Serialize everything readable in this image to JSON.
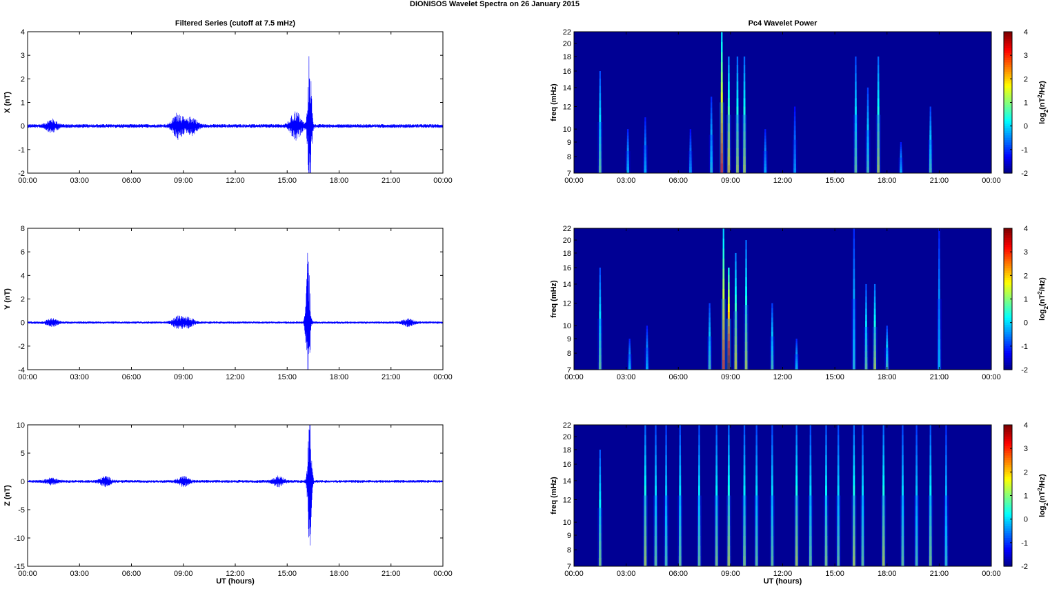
{
  "figure_title": "DIONISOS Wavelet Spectra on 26 January   2015",
  "chart_data": [
    {
      "type": "line",
      "title": "Filtered Series (cutoff at 7.5 mHz)",
      "xlabel": "",
      "ylabel": "X (nT)",
      "xlim": [
        0,
        24
      ],
      "ylim": [
        -2,
        4
      ],
      "yticks": [
        "4",
        "3",
        "2",
        "1",
        "0",
        "-1",
        "-2"
      ],
      "xticks": [
        "00:00",
        "03:00",
        "06:00",
        "09:00",
        "12:00",
        "15:00",
        "18:00",
        "21:00",
        "00:00"
      ],
      "color": "#0000ff",
      "activity": [
        {
          "t": 1.4,
          "amp": 0.25
        },
        {
          "t": 8.7,
          "amp": 0.55
        },
        {
          "t": 9.5,
          "amp": 0.35
        },
        {
          "t": 15.5,
          "amp": 0.6
        },
        {
          "t": 16.3,
          "amp": 3.3
        }
      ],
      "background_amp": 0.08
    },
    {
      "type": "line",
      "title": "",
      "xlabel": "",
      "ylabel": "Y (nT)",
      "xlim": [
        0,
        24
      ],
      "ylim": [
        -4,
        8
      ],
      "yticks": [
        "8",
        "6",
        "4",
        "2",
        "0",
        "-2",
        "-4"
      ],
      "xticks": [
        "00:00",
        "03:00",
        "06:00",
        "09:00",
        "12:00",
        "15:00",
        "18:00",
        "21:00",
        "00:00"
      ],
      "color": "#0000ff",
      "activity": [
        {
          "t": 1.4,
          "amp": 0.3
        },
        {
          "t": 8.7,
          "amp": 0.5
        },
        {
          "t": 9.3,
          "amp": 0.4
        },
        {
          "t": 16.2,
          "amp": 7.4
        },
        {
          "t": 22.0,
          "amp": 0.3
        }
      ],
      "background_amp": 0.1
    },
    {
      "type": "line",
      "title": "",
      "xlabel": "UT (hours)",
      "ylabel": "Z (nT)",
      "xlim": [
        0,
        24
      ],
      "ylim": [
        -15,
        10
      ],
      "yticks": [
        "10",
        "5",
        "0",
        "-5",
        "-10",
        "-15"
      ],
      "xticks": [
        "00:00",
        "03:00",
        "06:00",
        "09:00",
        "12:00",
        "15:00",
        "18:00",
        "21:00",
        "00:00"
      ],
      "color": "#0000ff",
      "activity": [
        {
          "t": 1.4,
          "amp": 0.5
        },
        {
          "t": 4.5,
          "amp": 0.8
        },
        {
          "t": 9.0,
          "amp": 0.8
        },
        {
          "t": 14.5,
          "amp": 0.8
        },
        {
          "t": 16.3,
          "amp": 13.5
        }
      ],
      "background_amp": 0.25
    },
    {
      "type": "heatmap",
      "title": "Pc4 Wavelet Power",
      "xlabel": "",
      "ylabel": "freq (mHz)",
      "xlim": [
        0,
        24
      ],
      "ylim": [
        7,
        22
      ],
      "log_y": true,
      "yticks": [
        "22",
        "20",
        "18",
        "16",
        "14",
        "12",
        "10",
        "9",
        "8",
        "7"
      ],
      "xticks": [
        "00:00",
        "03:00",
        "06:00",
        "09:00",
        "12:00",
        "15:00",
        "18:00",
        "21:00",
        "00:00"
      ],
      "colorbar_label": "log2(nT2/Hz)",
      "colorbar_ticks": [
        "4",
        "3",
        "2",
        "1",
        "0",
        "-1",
        "-2"
      ],
      "clim": [
        -2,
        4
      ],
      "bursts": [
        {
          "t": 1.5,
          "fmax": 16,
          "power": 1.0
        },
        {
          "t": 3.1,
          "fmax": 10,
          "power": 0.3
        },
        {
          "t": 4.1,
          "fmax": 11,
          "power": 0.2
        },
        {
          "t": 6.7,
          "fmax": 10,
          "power": 0.0
        },
        {
          "t": 7.9,
          "fmax": 13,
          "power": 0.5
        },
        {
          "t": 8.5,
          "fmax": 22,
          "power": 3.2
        },
        {
          "t": 8.9,
          "fmax": 18,
          "power": 2.0
        },
        {
          "t": 9.4,
          "fmax": 18,
          "power": 1.5
        },
        {
          "t": 9.8,
          "fmax": 18,
          "power": 1.5
        },
        {
          "t": 11.0,
          "fmax": 10,
          "power": 0.2
        },
        {
          "t": 12.7,
          "fmax": 12,
          "power": 0.0
        },
        {
          "t": 16.2,
          "fmax": 18,
          "power": 1.0
        },
        {
          "t": 16.9,
          "fmax": 14,
          "power": 0.8
        },
        {
          "t": 17.5,
          "fmax": 18,
          "power": 1.5
        },
        {
          "t": 18.8,
          "fmax": 9,
          "power": 0.2
        },
        {
          "t": 20.5,
          "fmax": 12,
          "power": 0.8
        }
      ]
    },
    {
      "type": "heatmap",
      "title": "",
      "xlabel": "",
      "ylabel": "freq (mHz)",
      "xlim": [
        0,
        24
      ],
      "ylim": [
        7,
        22
      ],
      "log_y": true,
      "yticks": [
        "22",
        "20",
        "18",
        "16",
        "14",
        "12",
        "10",
        "9",
        "8",
        "7"
      ],
      "xticks": [
        "00:00",
        "03:00",
        "06:00",
        "09:00",
        "12:00",
        "15:00",
        "18:00",
        "21:00",
        "00:00"
      ],
      "colorbar_label": "log2(nT2/Hz)",
      "colorbar_ticks": [
        "4",
        "3",
        "2",
        "1",
        "0",
        "-1",
        "-2"
      ],
      "clim": [
        -2,
        4
      ],
      "bursts": [
        {
          "t": 1.5,
          "fmax": 16,
          "power": 1.0
        },
        {
          "t": 3.2,
          "fmax": 9,
          "power": 0.3
        },
        {
          "t": 4.2,
          "fmax": 10,
          "power": 0.2
        },
        {
          "t": 7.8,
          "fmax": 12,
          "power": 0.8
        },
        {
          "t": 8.6,
          "fmax": 22,
          "power": 3.0
        },
        {
          "t": 8.9,
          "fmax": 16,
          "power": 4.0
        },
        {
          "t": 9.3,
          "fmax": 18,
          "power": 1.8
        },
        {
          "t": 9.9,
          "fmax": 20,
          "power": 1.5
        },
        {
          "t": 11.4,
          "fmax": 12,
          "power": 0.8
        },
        {
          "t": 12.8,
          "fmax": 9,
          "power": 0.4
        },
        {
          "t": 16.1,
          "fmax": 22,
          "power": 0.5
        },
        {
          "t": 16.8,
          "fmax": 14,
          "power": 1.0
        },
        {
          "t": 17.3,
          "fmax": 14,
          "power": 1.5
        },
        {
          "t": 18.0,
          "fmax": 10,
          "power": 0.8
        },
        {
          "t": 21.0,
          "fmax": 22,
          "power": 0.3
        }
      ]
    },
    {
      "type": "heatmap",
      "title": "",
      "xlabel": "UT (hours)",
      "ylabel": "freq (mHz)",
      "xlim": [
        0,
        24
      ],
      "ylim": [
        7,
        22
      ],
      "log_y": true,
      "yticks": [
        "22",
        "20",
        "18",
        "16",
        "14",
        "12",
        "10",
        "9",
        "8",
        "7"
      ],
      "xticks": [
        "00:00",
        "03:00",
        "06:00",
        "09:00",
        "12:00",
        "15:00",
        "18:00",
        "21:00",
        "00:00"
      ],
      "colorbar_label": "log2(nT2/Hz)",
      "colorbar_ticks": [
        "4",
        "3",
        "2",
        "1",
        "0",
        "-1",
        "-2"
      ],
      "clim": [
        -2,
        4
      ],
      "bursts": [
        {
          "t": 1.5,
          "fmax": 18,
          "power": 1.2
        },
        {
          "t": 4.1,
          "fmax": 22,
          "power": 1.5
        },
        {
          "t": 4.7,
          "fmax": 22,
          "power": 1.0
        },
        {
          "t": 5.3,
          "fmax": 22,
          "power": 0.8
        },
        {
          "t": 6.1,
          "fmax": 22,
          "power": 1.0
        },
        {
          "t": 7.2,
          "fmax": 22,
          "power": 1.0
        },
        {
          "t": 8.2,
          "fmax": 22,
          "power": 1.2
        },
        {
          "t": 8.9,
          "fmax": 22,
          "power": 1.5
        },
        {
          "t": 9.8,
          "fmax": 22,
          "power": 1.2
        },
        {
          "t": 10.5,
          "fmax": 22,
          "power": 1.0
        },
        {
          "t": 11.4,
          "fmax": 22,
          "power": 1.0
        },
        {
          "t": 12.8,
          "fmax": 22,
          "power": 1.5
        },
        {
          "t": 13.6,
          "fmax": 22,
          "power": 1.0
        },
        {
          "t": 14.5,
          "fmax": 22,
          "power": 1.2
        },
        {
          "t": 15.2,
          "fmax": 22,
          "power": 1.0
        },
        {
          "t": 16.1,
          "fmax": 22,
          "power": 1.5
        },
        {
          "t": 16.6,
          "fmax": 22,
          "power": 1.0
        },
        {
          "t": 17.8,
          "fmax": 22,
          "power": 1.5
        },
        {
          "t": 18.9,
          "fmax": 22,
          "power": 1.0
        },
        {
          "t": 19.7,
          "fmax": 22,
          "power": 0.8
        },
        {
          "t": 20.5,
          "fmax": 22,
          "power": 1.2
        },
        {
          "t": 21.4,
          "fmax": 22,
          "power": 0.6
        }
      ]
    }
  ]
}
